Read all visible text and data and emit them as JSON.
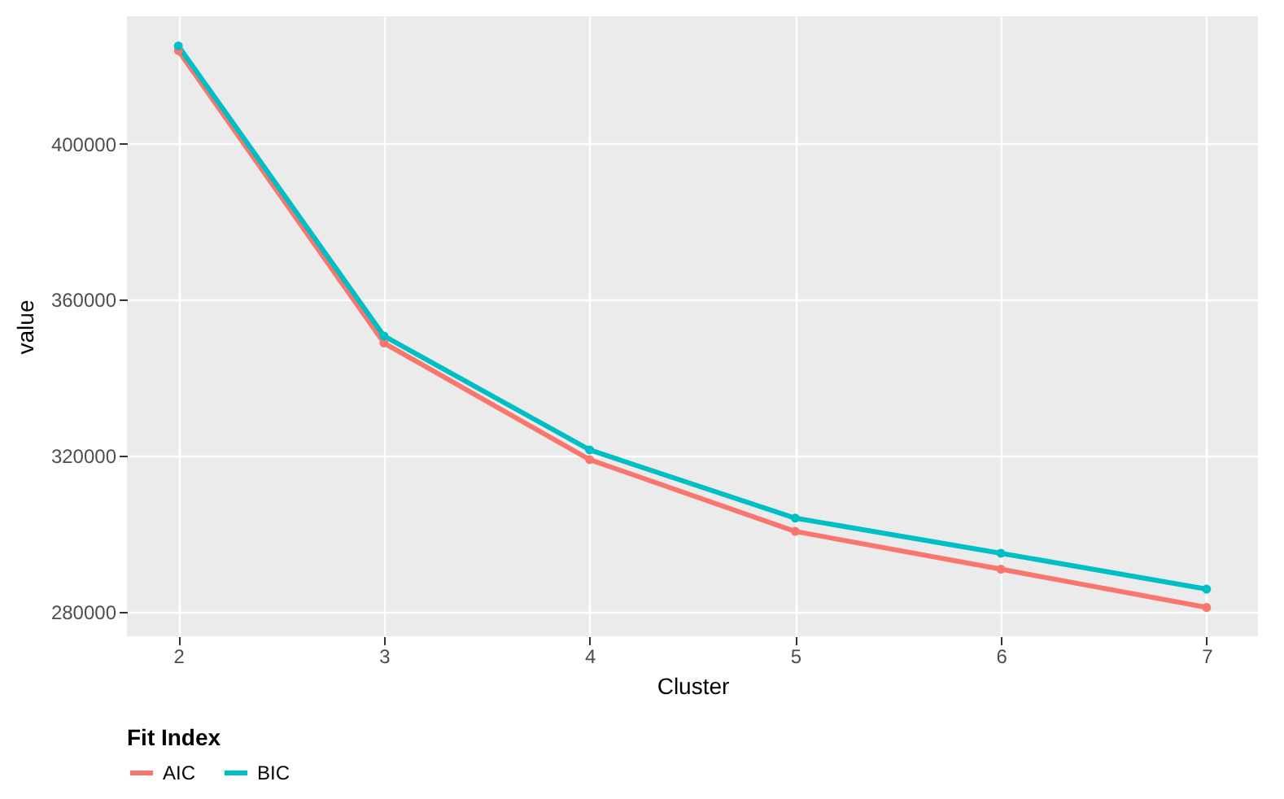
{
  "chart_data": {
    "type": "line",
    "xlabel": "Cluster",
    "ylabel": "value",
    "legend_title": "Fit Index",
    "x": [
      2,
      3,
      4,
      5,
      6,
      7
    ],
    "series": [
      {
        "name": "AIC",
        "color": "#f8766d",
        "values": [
          423900,
          348900,
          319000,
          300600,
          290900,
          281100
        ]
      },
      {
        "name": "BIC",
        "color": "#00bfc4",
        "values": [
          425100,
          350700,
          321500,
          304000,
          295000,
          285800
        ]
      }
    ],
    "xlim": [
      1.75,
      7.25
    ],
    "xticks": [
      2,
      3,
      4,
      5,
      6,
      7
    ],
    "ylim": [
      273700,
      432700
    ],
    "yticks": [
      280000,
      320000,
      360000,
      400000
    ],
    "grid": true,
    "legend": "bottom",
    "marker": "circle",
    "line_style": "solid"
  }
}
